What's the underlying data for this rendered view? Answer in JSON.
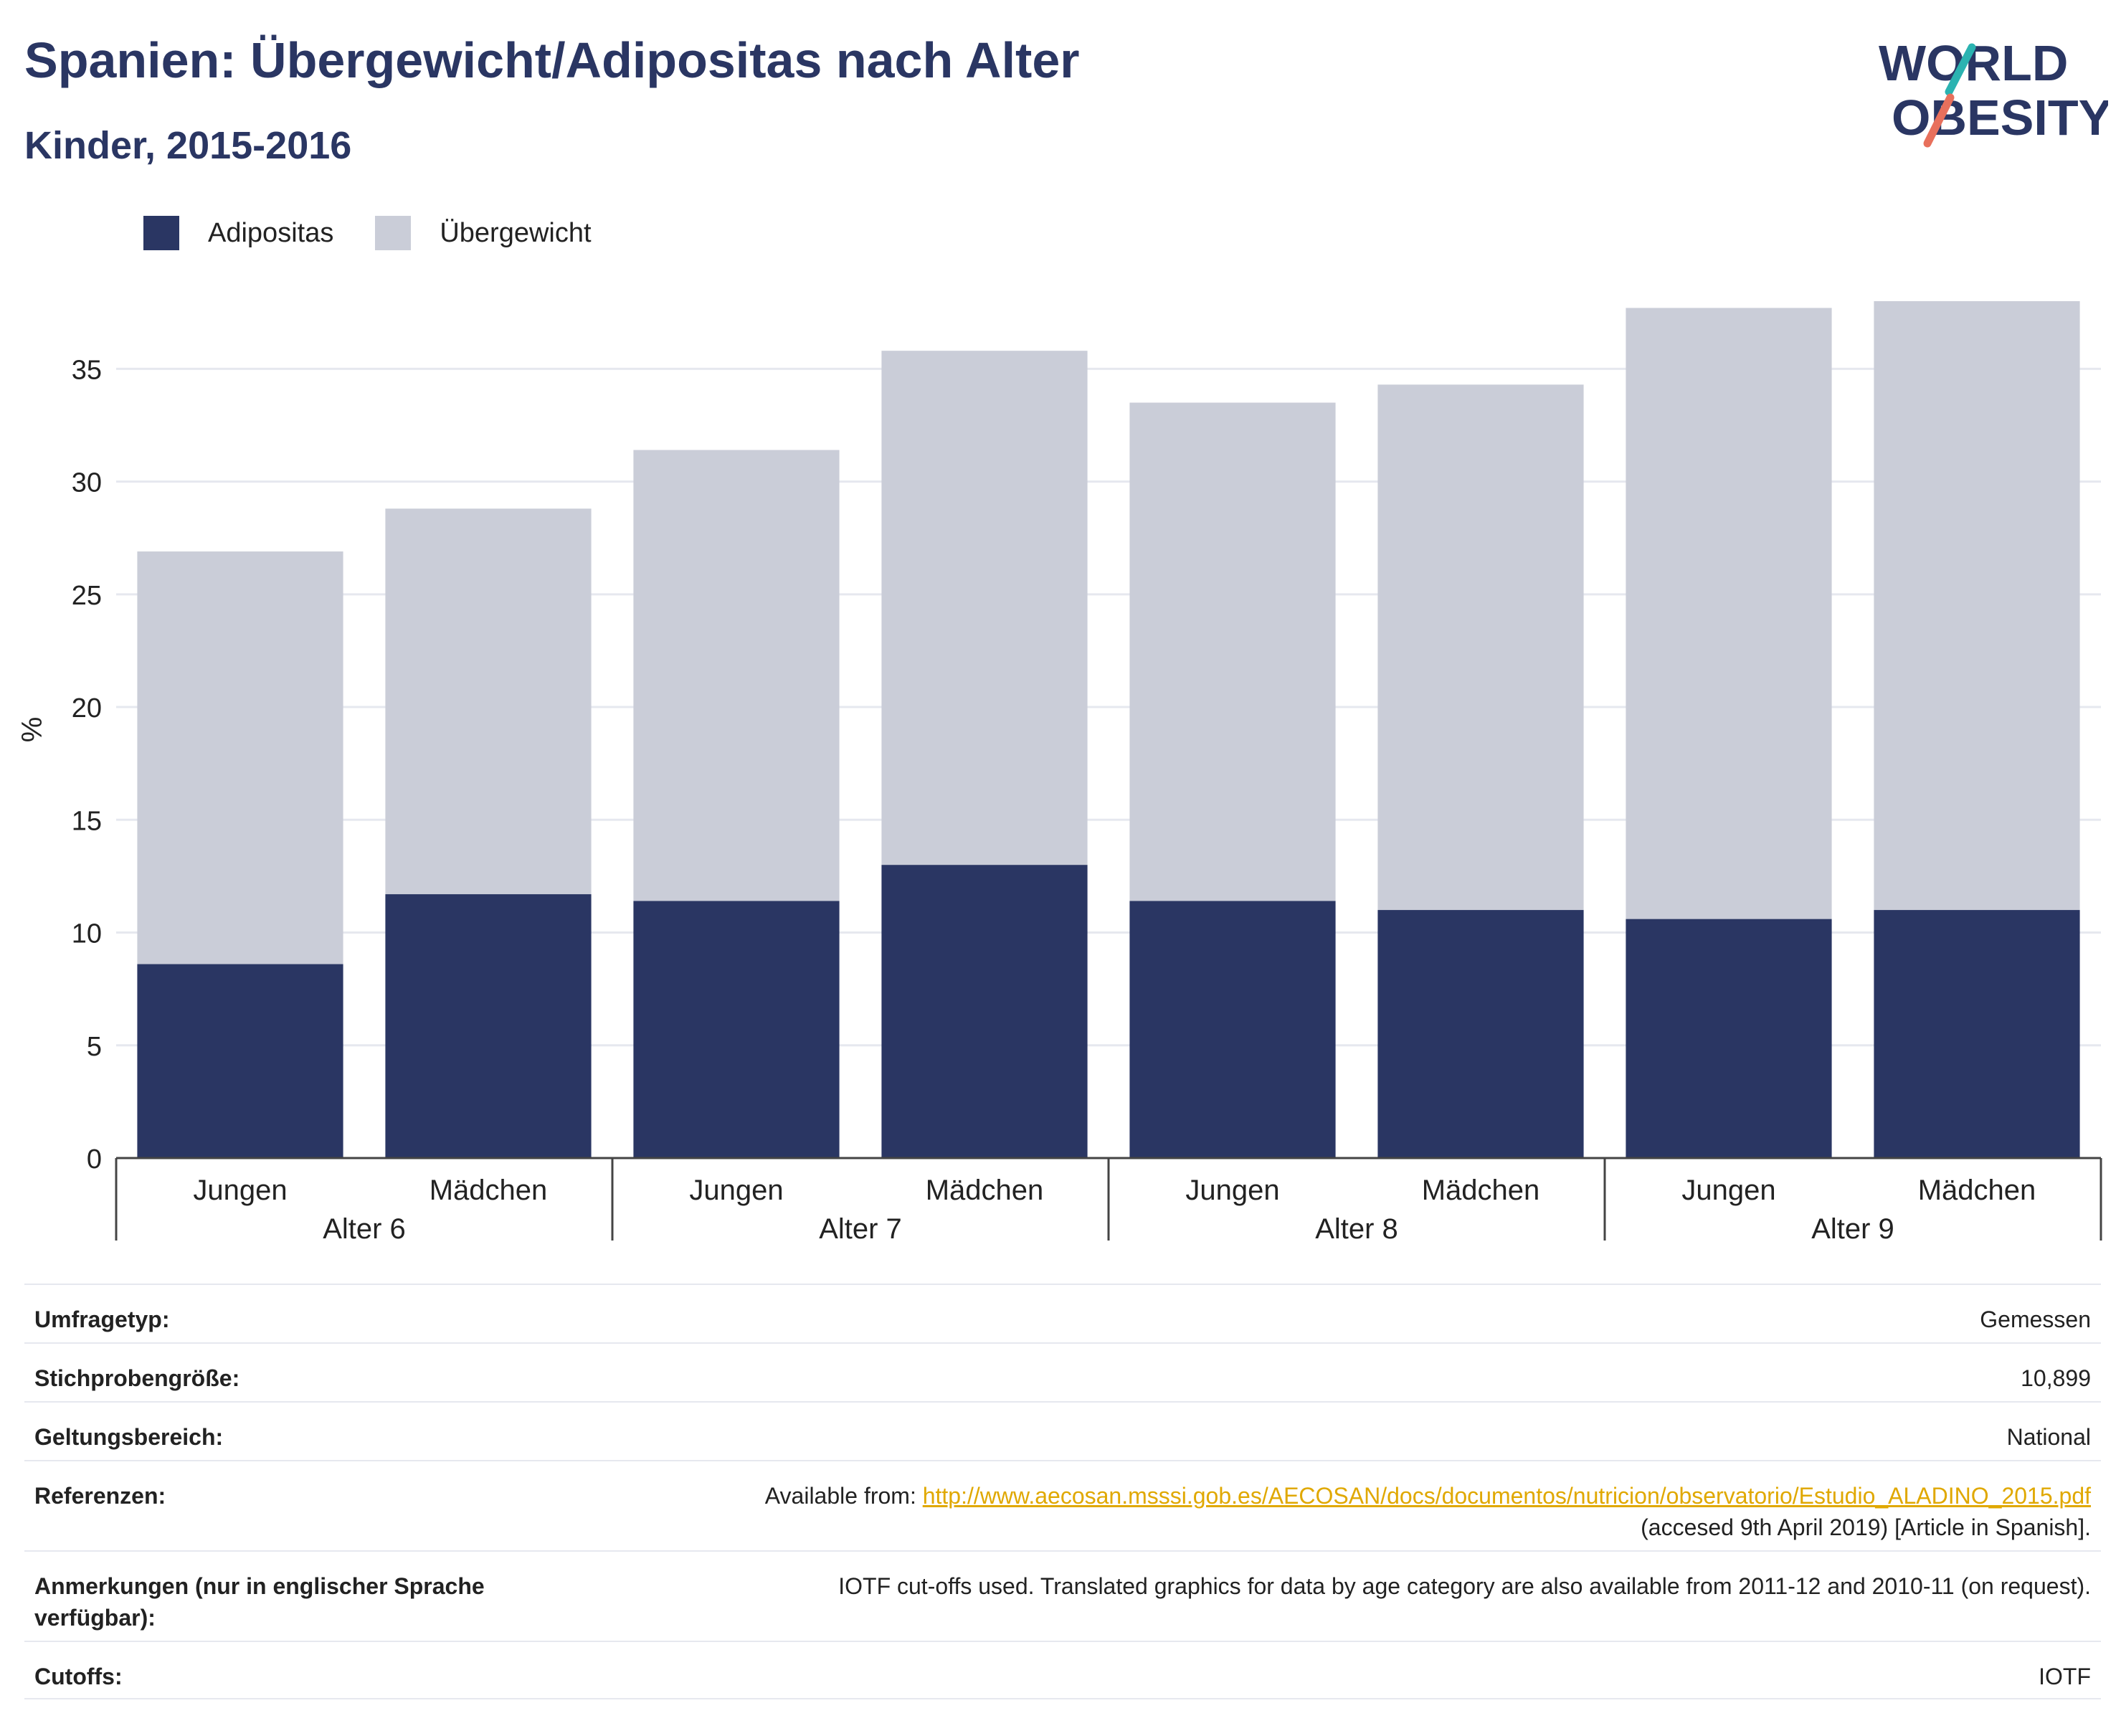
{
  "header": {
    "title": "Spanien: Übergewicht/Adipositas nach Alter",
    "subtitle": "Kinder, 2015-2016"
  },
  "logo": {
    "line1": "WORLD",
    "line2": "OBESITY"
  },
  "colors": {
    "adipositas": "#2a3663",
    "uebergewicht": "#cacdd8",
    "title": "#2a3663",
    "link": "#e0a800"
  },
  "chart_data": {
    "type": "bar",
    "stacked": true,
    "ylabel": "%",
    "ylim": [
      0,
      38
    ],
    "yticks": [
      0,
      5,
      10,
      15,
      20,
      25,
      30,
      35
    ],
    "grid": true,
    "legend_position": "top-left",
    "groups": [
      "Alter 6",
      "Alter 7",
      "Alter 8",
      "Alter 9"
    ],
    "categories": [
      "Jungen",
      "Mädchen",
      "Jungen",
      "Mädchen",
      "Jungen",
      "Mädchen",
      "Jungen",
      "Mädchen"
    ],
    "series": [
      {
        "name": "Adipositas",
        "values": [
          8.6,
          11.7,
          11.4,
          13.0,
          11.4,
          11.0,
          10.6,
          11.0
        ]
      },
      {
        "name": "Übergewicht",
        "values": [
          18.3,
          17.1,
          20.0,
          22.8,
          22.1,
          23.3,
          27.1,
          27.0
        ]
      }
    ]
  },
  "info": {
    "rows": [
      {
        "label": "Umfragetyp:",
        "value": "Gemessen"
      },
      {
        "label": "Stichprobengröße:",
        "value": "10,899"
      },
      {
        "label": "Geltungsbereich:",
        "value": "National"
      },
      {
        "label": "Referenzen:",
        "prefix": "Available from: ",
        "link": "http://www.aecosan.msssi.gob.es/AECOSAN/docs/documentos/nutricion/observatorio/Estudio_ALADINO_2015.pdf",
        "suffix": "(accesed 9th April 2019) [Article in Spanish]."
      },
      {
        "label": "Anmerkungen (nur in englischer Sprache verfügbar):",
        "value": "IOTF cut-offs used. Translated graphics for data by age category are also available from 2011-12 and 2010-11 (on request)."
      },
      {
        "label": "Cutoffs:",
        "value": "IOTF"
      }
    ]
  }
}
